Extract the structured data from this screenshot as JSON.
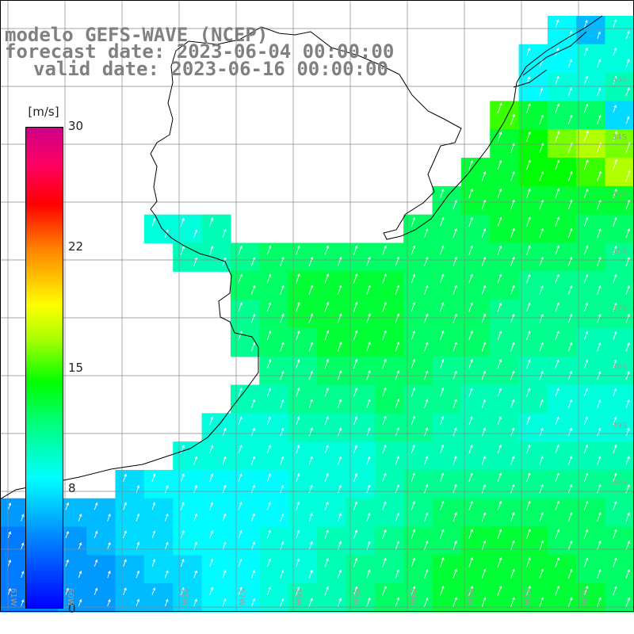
{
  "title": {
    "line1": "modelo GEFS-WAVE (NCEP)",
    "line2": "forecast date: 2023-06-04 00:00:00",
    "line3": "valid date: 2023-06-16 00:00:00"
  },
  "colorbar": {
    "unit": "[m/s]",
    "ticks": [
      "30",
      "22",
      "15",
      "8",
      "0"
    ],
    "tick_values": [
      30,
      22,
      15,
      8,
      0
    ],
    "stops": [
      "#0000ff",
      "#0080ff",
      "#00ffff",
      "#00ff80",
      "#00ff00",
      "#aaff00",
      "#ffff00",
      "#ff8000",
      "#ff0000",
      "#cc0088"
    ]
  },
  "axes": {
    "lon_labels": [
      "61W",
      "60W",
      "58W",
      "57W",
      "56W",
      "55W",
      "54W",
      "53W",
      "52W",
      "51W"
    ],
    "lat_labels": [
      "33S",
      "34S",
      "35S",
      "36S",
      "37S",
      "38S",
      "39S",
      "40S"
    ]
  },
  "field": {
    "cols": 22,
    "rows": 21,
    "speed_grid": [
      [
        null,
        null,
        null,
        null,
        null,
        null,
        null,
        null,
        null,
        null,
        null,
        null,
        null,
        null,
        null,
        null,
        null,
        null,
        null,
        8,
        6,
        9
      ],
      [
        null,
        null,
        null,
        null,
        null,
        null,
        null,
        null,
        null,
        null,
        null,
        null,
        null,
        null,
        null,
        null,
        null,
        null,
        8,
        8,
        9,
        9
      ],
      [
        null,
        null,
        null,
        null,
        null,
        null,
        null,
        null,
        null,
        null,
        null,
        null,
        null,
        null,
        null,
        null,
        null,
        null,
        8,
        9,
        9,
        10
      ],
      [
        null,
        null,
        null,
        null,
        null,
        null,
        null,
        null,
        null,
        null,
        null,
        null,
        null,
        null,
        null,
        null,
        null,
        15,
        13,
        12,
        12,
        7
      ],
      [
        null,
        null,
        null,
        null,
        null,
        null,
        null,
        null,
        null,
        null,
        null,
        null,
        null,
        null,
        null,
        null,
        null,
        13,
        14,
        16,
        17,
        16
      ],
      [
        null,
        null,
        null,
        null,
        null,
        null,
        null,
        null,
        null,
        null,
        null,
        null,
        null,
        null,
        null,
        null,
        13,
        13,
        14,
        14,
        15,
        17
      ],
      [
        null,
        null,
        null,
        null,
        null,
        null,
        null,
        null,
        null,
        null,
        null,
        null,
        null,
        null,
        null,
        12,
        13,
        13,
        13,
        13,
        13,
        13
      ],
      [
        null,
        null,
        null,
        null,
        null,
        9,
        9,
        10,
        null,
        null,
        null,
        null,
        null,
        null,
        12,
        12,
        12,
        13,
        13,
        13,
        12,
        12
      ],
      [
        null,
        null,
        null,
        null,
        null,
        null,
        10,
        10,
        11,
        12,
        12,
        12,
        12,
        12,
        12,
        12,
        12,
        12,
        12,
        12,
        12,
        11
      ],
      [
        null,
        null,
        null,
        null,
        null,
        null,
        null,
        null,
        12,
        12,
        13,
        13,
        13,
        13,
        12,
        12,
        12,
        12,
        11,
        11,
        11,
        11
      ],
      [
        null,
        null,
        null,
        null,
        null,
        null,
        null,
        null,
        11,
        12,
        13,
        13,
        13,
        13,
        12,
        12,
        12,
        11,
        11,
        11,
        11,
        11
      ],
      [
        null,
        null,
        null,
        null,
        null,
        null,
        null,
        null,
        11,
        12,
        12,
        13,
        13,
        13,
        12,
        12,
        12,
        11,
        11,
        11,
        10,
        10
      ],
      [
        null,
        null,
        null,
        null,
        null,
        null,
        null,
        null,
        null,
        11,
        11,
        12,
        12,
        12,
        12,
        11,
        11,
        11,
        10,
        10,
        10,
        10
      ],
      [
        null,
        null,
        null,
        null,
        null,
        null,
        null,
        null,
        10,
        10,
        11,
        11,
        11,
        12,
        11,
        11,
        10,
        10,
        10,
        9,
        9,
        9
      ],
      [
        null,
        null,
        null,
        null,
        null,
        null,
        null,
        9,
        9,
        9,
        10,
        10,
        10,
        11,
        11,
        10,
        10,
        10,
        9,
        9,
        9,
        9
      ],
      [
        null,
        null,
        null,
        null,
        null,
        null,
        9,
        9,
        9,
        9,
        9,
        9,
        9,
        10,
        10,
        10,
        10,
        10,
        10,
        10,
        10,
        10
      ],
      [
        null,
        null,
        null,
        null,
        7,
        8,
        8,
        8,
        8,
        8,
        9,
        9,
        9,
        10,
        11,
        11,
        11,
        11,
        11,
        11,
        11,
        11
      ],
      [
        5,
        5,
        6,
        6,
        7,
        7,
        8,
        8,
        8,
        8,
        9,
        9,
        10,
        10,
        11,
        12,
        12,
        12,
        12,
        12,
        12,
        11
      ],
      [
        4,
        5,
        5,
        6,
        7,
        7,
        8,
        8,
        8,
        9,
        9,
        10,
        10,
        11,
        12,
        12,
        13,
        13,
        13,
        12,
        12,
        12
      ],
      [
        4,
        4,
        5,
        5,
        6,
        7,
        7,
        8,
        8,
        9,
        9,
        10,
        11,
        11,
        12,
        13,
        13,
        13,
        13,
        13,
        12,
        12
      ],
      [
        4,
        4,
        5,
        5,
        6,
        6,
        7,
        8,
        8,
        9,
        10,
        10,
        11,
        12,
        12,
        13,
        13,
        13,
        13,
        13,
        13,
        12
      ]
    ]
  }
}
